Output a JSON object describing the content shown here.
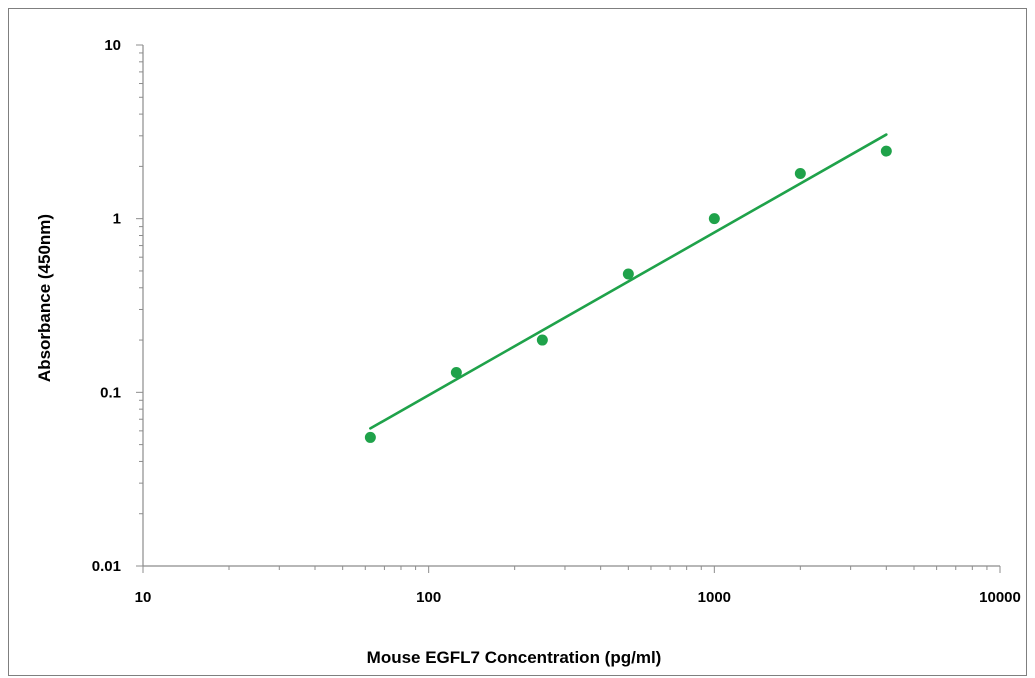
{
  "chart_data": {
    "type": "scatter",
    "title": "",
    "xlabel": "Mouse EGFL7 Concentration (pg/ml)",
    "ylabel": "Absorbance (450nm)",
    "x_scale": "log",
    "y_scale": "log",
    "xlim": [
      10,
      10000
    ],
    "ylim": [
      0.01,
      10
    ],
    "x_ticks": [
      10,
      100,
      1000,
      10000
    ],
    "y_ticks": [
      0.01,
      0.1,
      1,
      10
    ],
    "x_tick_labels": [
      "10",
      "100",
      "1000",
      "10000"
    ],
    "y_tick_labels": [
      "0.01",
      "0.1",
      "1",
      "10"
    ],
    "grid": false,
    "legend": "none",
    "color": "#1fa24a",
    "series": [
      {
        "points": [
          {
            "x": 62.5,
            "y": 0.055
          },
          {
            "x": 125,
            "y": 0.13
          },
          {
            "x": 250,
            "y": 0.2
          },
          {
            "x": 500,
            "y": 0.48
          },
          {
            "x": 1000,
            "y": 1.0
          },
          {
            "x": 2000,
            "y": 1.82
          },
          {
            "x": 4000,
            "y": 2.45
          }
        ]
      }
    ],
    "trendline": {
      "type": "power",
      "x_range": [
        62.5,
        4000
      ],
      "y_range": [
        0.062,
        3.05
      ]
    }
  }
}
